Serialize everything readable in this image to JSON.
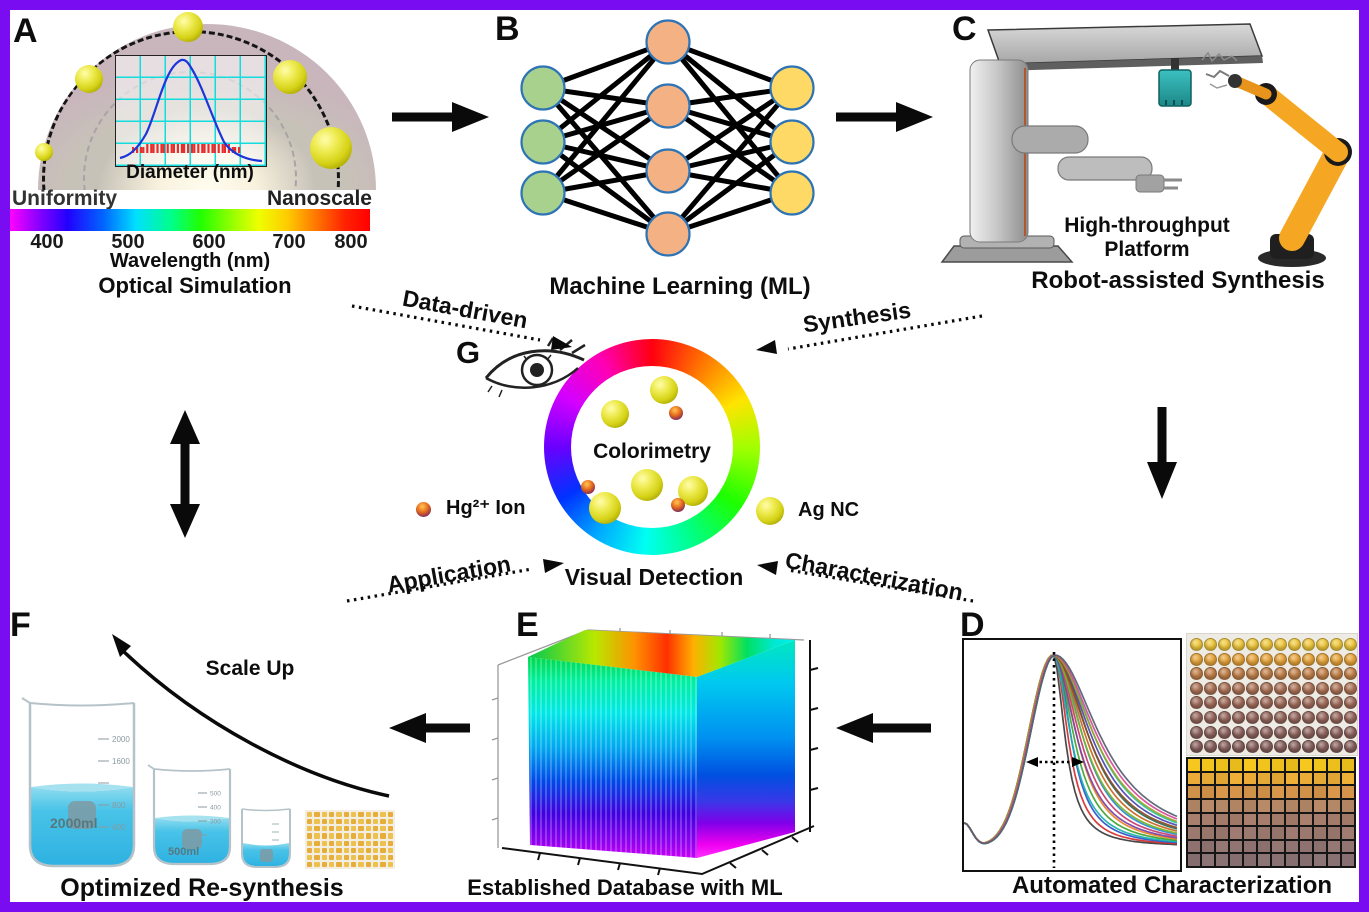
{
  "frame": {
    "border_color": "#7a0cf2"
  },
  "panels": {
    "a": {
      "letter": "A",
      "inset_xlabel": "Diameter (nm)",
      "label_left": "Uniformity",
      "label_right": "Nanoscale",
      "colorbar_ticks": [
        "400",
        "500",
        "600",
        "700",
        "800"
      ],
      "xlabel": "Wavelength (nm)",
      "caption": "Optical Simulation"
    },
    "b": {
      "letter": "B",
      "caption": "Machine Learning (ML)",
      "node_colors": {
        "input": "#a9d18e",
        "hidden": "#f4b183",
        "output": "#ffd966"
      }
    },
    "c": {
      "letter": "C",
      "platform_line1": "High-throughput",
      "platform_line2": "Platform",
      "caption": "Robot-assisted Synthesis"
    },
    "d": {
      "letter": "D",
      "caption": "Automated Characterization",
      "spectra_colors": [
        "#3a3a3a",
        "#d42a2a",
        "#2a52c8",
        "#19b0b0",
        "#3fa32f",
        "#e8821e",
        "#7a3fa8",
        "#c23a6a",
        "#2a8ad4",
        "#74b423",
        "#c8641e",
        "#2a6a55",
        "#8a4a23",
        "#4a42b0",
        "#23c8a0",
        "#a0a024",
        "#d44a98",
        "#556070"
      ],
      "wellplate_row_colors": [
        "#efc83d",
        "#e7a43b",
        "#c1804a",
        "#ab7257",
        "#9f6b5a",
        "#94665c",
        "#8d635e",
        "#87605e"
      ],
      "grid_row_colors": [
        "#f6c71e",
        "#efb038",
        "#d9974c",
        "#b88a68",
        "#a9806e",
        "#9f7b71",
        "#957774",
        "#8d7476"
      ]
    },
    "e": {
      "letter": "E",
      "caption": "Established Database with ML"
    },
    "f": {
      "letter": "F",
      "scale_up": "Scale Up",
      "caption": "Optimized Re-synthesis",
      "beaker_large_label": "2000ml",
      "beaker_medium_label": "500ml",
      "grad_large": [
        "2000",
        "1600",
        "800",
        "400"
      ],
      "grad_medium": [
        "500",
        "400",
        "300"
      ]
    },
    "g": {
      "letter": "G",
      "center_label": "Colorimetry",
      "caption": "Visual Detection",
      "legend_hg": "Hg²⁺ Ion",
      "legend_ag": "Ag NC"
    }
  },
  "cycle_labels": {
    "data_driven": "Data-driven",
    "synthesis": "Synthesis",
    "application": "Application",
    "characterization": "Characterization"
  }
}
